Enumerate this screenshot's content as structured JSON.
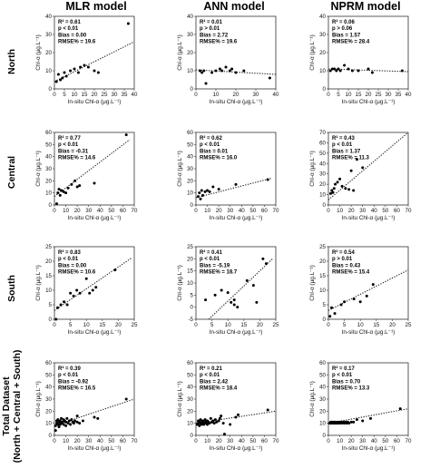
{
  "figure": {
    "columns": [
      "MLR model",
      "ANN model",
      "NPRM model"
    ],
    "rows": [
      {
        "label": "North"
      },
      {
        "label": "Central"
      },
      {
        "label": "South"
      },
      {
        "label": "Total Dataset",
        "sublabel": "(North + Central + South)"
      }
    ]
  },
  "chart_data": [
    {
      "type": "scatter",
      "row": "North",
      "model": "MLR model",
      "xlabel": "In-situ Chl-α  (μg.L⁻¹)",
      "ylabel": "Chl-α  (μg.L⁻¹)",
      "xlim": [
        0,
        40
      ],
      "ylim": [
        0,
        40
      ],
      "xticks": [
        0,
        5,
        10,
        15,
        20,
        25,
        30,
        35,
        40
      ],
      "yticks": [
        0,
        10,
        20,
        30,
        40
      ],
      "stats": [
        "R² = 0.61",
        "p < 0.01",
        "Bias = 0.00",
        "RMSE% = 19.6"
      ],
      "trend": [
        [
          0,
          4
        ],
        [
          40,
          26
        ]
      ],
      "points": [
        [
          1,
          4
        ],
        [
          2,
          8
        ],
        [
          3,
          5
        ],
        [
          4,
          6
        ],
        [
          5,
          9
        ],
        [
          6,
          7
        ],
        [
          8,
          10
        ],
        [
          10,
          11
        ],
        [
          12,
          9
        ],
        [
          13,
          12
        ],
        [
          15,
          13
        ],
        [
          17,
          12
        ],
        [
          20,
          10
        ],
        [
          22,
          9
        ],
        [
          37,
          36
        ]
      ]
    },
    {
      "type": "scatter",
      "row": "North",
      "model": "ANN model",
      "xlabel": "In-situ Chl-α  (μg.L⁻¹)",
      "ylabel": "Chl-α  (μg.L⁻¹)",
      "xlim": [
        0,
        40
      ],
      "ylim": [
        0,
        40
      ],
      "xticks": [
        0,
        10,
        20,
        30,
        40
      ],
      "yticks": [
        0,
        10,
        20,
        30,
        40
      ],
      "stats": [
        "R² = 0.01",
        "p > 0.01",
        "Bias = 2.72",
        "RMSE% = 19.6"
      ],
      "trend": [
        [
          0,
          10.5
        ],
        [
          40,
          8
        ]
      ],
      "points": [
        [
          2,
          10
        ],
        [
          3,
          9
        ],
        [
          4,
          10
        ],
        [
          5,
          3
        ],
        [
          8,
          9
        ],
        [
          10,
          10
        ],
        [
          12,
          11
        ],
        [
          13,
          10
        ],
        [
          15,
          12
        ],
        [
          17,
          10
        ],
        [
          18,
          11
        ],
        [
          20,
          9
        ],
        [
          24,
          10
        ],
        [
          37,
          6
        ]
      ]
    },
    {
      "type": "scatter",
      "row": "North",
      "model": "NPRM model",
      "xlabel": "In-situ Chl-α  (μg.L⁻¹)",
      "ylabel": "Chl-α  (μg.L⁻¹)",
      "xlim": [
        0,
        40
      ],
      "ylim": [
        0,
        40
      ],
      "xticks": [
        0,
        5,
        10,
        15,
        20,
        25,
        30,
        35,
        40
      ],
      "yticks": [
        0,
        10,
        20,
        30,
        40
      ],
      "stats": [
        "R² = 0.06",
        "p > 0.06",
        "Bias = 1.57",
        "RMSE% = 28.4"
      ],
      "trend": [
        [
          0,
          11
        ],
        [
          40,
          9.5
        ]
      ],
      "points": [
        [
          1,
          10
        ],
        [
          2,
          11
        ],
        [
          3,
          11
        ],
        [
          4,
          10
        ],
        [
          5,
          11
        ],
        [
          6,
          10
        ],
        [
          8,
          13
        ],
        [
          10,
          11
        ],
        [
          12,
          10
        ],
        [
          15,
          10
        ],
        [
          20,
          11
        ],
        [
          22,
          9
        ],
        [
          37,
          10
        ]
      ]
    },
    {
      "type": "scatter",
      "row": "Central",
      "model": "MLR model",
      "xlabel": "In-situ Chl-α  (μg.L⁻¹)",
      "ylabel": "Chl-α  (μg.L⁻¹)",
      "xlim": [
        0,
        70
      ],
      "ylim": [
        0,
        60
      ],
      "xticks": [
        0,
        10,
        20,
        30,
        40,
        50,
        60,
        70
      ],
      "yticks": [
        0,
        10,
        20,
        30,
        40,
        50,
        60
      ],
      "stats": [
        "R² = 0.77",
        "p < 0.01",
        "Bias = -0.31",
        "RMSE% = 14.6"
      ],
      "trend": [
        [
          0,
          7
        ],
        [
          66,
          54
        ]
      ],
      "points": [
        [
          2,
          1
        ],
        [
          3,
          10
        ],
        [
          4,
          13
        ],
        [
          5,
          8
        ],
        [
          6,
          12
        ],
        [
          8,
          11
        ],
        [
          10,
          10
        ],
        [
          12,
          14
        ],
        [
          15,
          17
        ],
        [
          18,
          20
        ],
        [
          20,
          15
        ],
        [
          22,
          16
        ],
        [
          35,
          18
        ],
        [
          63,
          58
        ]
      ]
    },
    {
      "type": "scatter",
      "row": "Central",
      "model": "ANN model",
      "xlabel": "In-situ Chl-α  (μg.L⁻¹)",
      "ylabel": "Chl-α  (μg.L⁻¹)",
      "xlim": [
        0,
        70
      ],
      "ylim": [
        0,
        60
      ],
      "xticks": [
        0,
        10,
        20,
        30,
        40,
        50,
        60,
        70
      ],
      "yticks": [
        0,
        10,
        20,
        30,
        40,
        50,
        60
      ],
      "stats": [
        "R² = 0.62",
        "p < 0.01",
        "Bias = 0.01",
        "RMSE% = 16.0"
      ],
      "trend": [
        [
          0,
          6
        ],
        [
          66,
          22
        ]
      ],
      "points": [
        [
          2,
          7
        ],
        [
          3,
          10
        ],
        [
          4,
          5
        ],
        [
          5,
          12
        ],
        [
          6,
          8
        ],
        [
          8,
          11
        ],
        [
          10,
          12
        ],
        [
          12,
          11
        ],
        [
          15,
          15
        ],
        [
          20,
          13
        ],
        [
          35,
          17
        ],
        [
          63,
          21
        ]
      ]
    },
    {
      "type": "scatter",
      "row": "Central",
      "model": "NPRM model",
      "xlabel": "In-situ Chl-α  (μg.L⁻¹)",
      "ylabel": "Chl-α  (μg.L⁻¹)",
      "xlim": [
        0,
        70
      ],
      "ylim": [
        0,
        70
      ],
      "xticks": [
        0,
        10,
        20,
        30,
        40,
        50,
        60,
        70
      ],
      "yticks": [
        0,
        10,
        20,
        30,
        40,
        50,
        60,
        70
      ],
      "stats": [
        "R² = 0.43",
        "p < 0.01",
        "Bias = 1.37",
        "RMSE% = 11.3"
      ],
      "trend": [
        [
          0,
          5
        ],
        [
          70,
          70
        ]
      ],
      "points": [
        [
          2,
          11
        ],
        [
          3,
          14
        ],
        [
          4,
          12
        ],
        [
          5,
          16
        ],
        [
          6,
          20
        ],
        [
          8,
          22
        ],
        [
          10,
          25
        ],
        [
          12,
          18
        ],
        [
          15,
          16
        ],
        [
          18,
          15
        ],
        [
          20,
          33
        ],
        [
          22,
          14
        ],
        [
          25,
          44
        ],
        [
          30,
          36
        ]
      ]
    },
    {
      "type": "scatter",
      "row": "South",
      "model": "MLR model",
      "xlabel": "In-situ Chl-α  (μg.L⁻¹)",
      "ylabel": "Chl-α  (μg.L⁻¹)",
      "xlim": [
        0,
        25
      ],
      "ylim": [
        0,
        25
      ],
      "xticks": [
        0,
        5,
        10,
        15,
        20,
        25
      ],
      "yticks": [
        0,
        5,
        10,
        15,
        20,
        25
      ],
      "stats": [
        "R² = 0.83",
        "p < 0.01",
        "Bias = 0.00",
        "RMSE% = 10.6"
      ],
      "trend": [
        [
          0,
          3
        ],
        [
          24,
          21
        ]
      ],
      "points": [
        [
          0.5,
          0
        ],
        [
          1,
          4
        ],
        [
          2,
          5
        ],
        [
          3,
          6
        ],
        [
          4,
          5
        ],
        [
          5,
          9
        ],
        [
          6,
          8
        ],
        [
          7,
          10
        ],
        [
          8,
          9
        ],
        [
          10,
          14
        ],
        [
          11,
          9
        ],
        [
          12,
          10
        ],
        [
          13,
          11
        ],
        [
          19,
          17
        ]
      ]
    },
    {
      "type": "scatter",
      "row": "South",
      "model": "ANN model",
      "xlabel": "In-situ Chl-α  (μg.L⁻¹)",
      "ylabel": "Chl-α  (μg.L⁻¹)",
      "xlim": [
        0,
        25
      ],
      "ylim": [
        -5,
        25
      ],
      "xticks": [
        0,
        5,
        10,
        15,
        20,
        25
      ],
      "yticks": [
        -5,
        0,
        5,
        10,
        15,
        20,
        25
      ],
      "stats": [
        "R² = 0.41",
        "p < 0.01",
        "Bias = -5.19",
        "RMSE% = 18.7"
      ],
      "trend": [
        [
          4,
          -5
        ],
        [
          24,
          20
        ]
      ],
      "points": [
        [
          3,
          3
        ],
        [
          6,
          5
        ],
        [
          8,
          7
        ],
        [
          10,
          6
        ],
        [
          11,
          2
        ],
        [
          12,
          1
        ],
        [
          12,
          3
        ],
        [
          13,
          0
        ],
        [
          16,
          11
        ],
        [
          18,
          9
        ],
        [
          19,
          2
        ],
        [
          21,
          20
        ],
        [
          22,
          18
        ]
      ]
    },
    {
      "type": "scatter",
      "row": "South",
      "model": "NPRM model",
      "xlabel": "In-situ Chl-α  (μg.L⁻¹)",
      "ylabel": "Chl-α  (μg.L⁻¹)",
      "xlim": [
        0,
        25
      ],
      "ylim": [
        0,
        25
      ],
      "xticks": [
        0,
        5,
        10,
        15,
        20,
        25
      ],
      "yticks": [
        0,
        5,
        10,
        15,
        20,
        25
      ],
      "stats": [
        "R² = 0.54",
        "p > 0.01",
        "Bias = 0.43",
        "RMSE% = 15.4"
      ],
      "trend": [
        [
          0,
          3
        ],
        [
          25,
          17
        ]
      ],
      "points": [
        [
          0.5,
          1
        ],
        [
          1,
          4
        ],
        [
          2,
          2
        ],
        [
          4,
          5
        ],
        [
          5,
          6
        ],
        [
          8,
          7
        ],
        [
          10,
          6
        ],
        [
          12,
          8
        ],
        [
          14,
          12
        ]
      ]
    },
    {
      "type": "scatter",
      "row": "Total Dataset",
      "model": "MLR model",
      "xlabel": "In-situ Chl-α  (μg.L⁻¹)",
      "ylabel": "Chl-α  (μg.L⁻¹)",
      "xlim": [
        0,
        70
      ],
      "ylim": [
        0,
        60
      ],
      "xticks": [
        0,
        10,
        20,
        30,
        40,
        50,
        60,
        70
      ],
      "yticks": [
        0,
        10,
        20,
        30,
        40,
        50,
        60
      ],
      "stats": [
        "R² = 0.39",
        "p < 0.01",
        "Bias = -0.92",
        "RMSE% = 16.5"
      ],
      "trend": [
        [
          0,
          8
        ],
        [
          70,
          30
        ]
      ],
      "points": [
        [
          1,
          4
        ],
        [
          1,
          8
        ],
        [
          2,
          10
        ],
        [
          2,
          12
        ],
        [
          3,
          9
        ],
        [
          3,
          13
        ],
        [
          4,
          11
        ],
        [
          4,
          7
        ],
        [
          5,
          12
        ],
        [
          5,
          9
        ],
        [
          6,
          10
        ],
        [
          6,
          14
        ],
        [
          7,
          11
        ],
        [
          8,
          9
        ],
        [
          8,
          13
        ],
        [
          9,
          12
        ],
        [
          10,
          8
        ],
        [
          10,
          11
        ],
        [
          11,
          14
        ],
        [
          12,
          10
        ],
        [
          13,
          12
        ],
        [
          14,
          9
        ],
        [
          15,
          13
        ],
        [
          16,
          11
        ],
        [
          17,
          10
        ],
        [
          18,
          12
        ],
        [
          20,
          11
        ],
        [
          20,
          16
        ],
        [
          22,
          10
        ],
        [
          25,
          12
        ],
        [
          35,
          15
        ],
        [
          38,
          14
        ],
        [
          63,
          30
        ]
      ]
    },
    {
      "type": "scatter",
      "row": "Total Dataset",
      "model": "ANN model",
      "xlabel": "In-situ Chl-α  (μg.L⁻¹)",
      "ylabel": "Chl-α  (μg.L⁻¹)",
      "xlim": [
        0,
        70
      ],
      "ylim": [
        0,
        60
      ],
      "xticks": [
        0,
        10,
        20,
        30,
        40,
        50,
        60,
        70
      ],
      "yticks": [
        0,
        10,
        20,
        30,
        40,
        50,
        60
      ],
      "stats": [
        "R² = 0.21",
        "p < 0.01",
        "Bias = 2.42",
        "RMSE% = 18.4"
      ],
      "trend": [
        [
          0,
          10
        ],
        [
          70,
          20
        ]
      ],
      "points": [
        [
          1,
          9
        ],
        [
          2,
          10
        ],
        [
          2,
          12
        ],
        [
          3,
          8
        ],
        [
          3,
          11
        ],
        [
          4,
          10
        ],
        [
          4,
          13
        ],
        [
          5,
          9
        ],
        [
          5,
          11
        ],
        [
          6,
          12
        ],
        [
          6,
          10
        ],
        [
          7,
          9
        ],
        [
          8,
          11
        ],
        [
          8,
          13
        ],
        [
          9,
          10
        ],
        [
          10,
          12
        ],
        [
          10,
          9
        ],
        [
          11,
          11
        ],
        [
          12,
          10
        ],
        [
          13,
          14
        ],
        [
          14,
          11
        ],
        [
          15,
          12
        ],
        [
          16,
          10
        ],
        [
          17,
          13
        ],
        [
          18,
          11
        ],
        [
          20,
          12
        ],
        [
          21,
          14
        ],
        [
          22,
          16
        ],
        [
          24,
          10
        ],
        [
          25,
          1
        ],
        [
          30,
          9
        ],
        [
          35,
          15
        ],
        [
          37,
          17
        ],
        [
          63,
          21
        ]
      ]
    },
    {
      "type": "scatter",
      "row": "Total Dataset",
      "model": "NPRM model",
      "xlabel": "In-situ Chl-α  (μg.L⁻¹)",
      "ylabel": "Chl-α  (μg.L⁻¹)",
      "xlim": [
        0,
        70
      ],
      "ylim": [
        0,
        60
      ],
      "xticks": [
        0,
        10,
        20,
        30,
        40,
        50,
        60,
        70
      ],
      "yticks": [
        0,
        10,
        20,
        30,
        40,
        50,
        60
      ],
      "stats": [
        "R² = 0.17",
        "p < 0.01",
        "Bias = 0.70",
        "RMSE% = 13.3"
      ],
      "trend": [
        [
          0,
          10
        ],
        [
          70,
          22
        ]
      ],
      "points": [
        [
          1,
          10
        ],
        [
          2,
          10
        ],
        [
          2,
          11
        ],
        [
          3,
          10
        ],
        [
          3,
          11
        ],
        [
          4,
          10
        ],
        [
          4,
          11
        ],
        [
          5,
          10
        ],
        [
          5,
          11
        ],
        [
          6,
          10
        ],
        [
          6,
          11
        ],
        [
          7,
          10
        ],
        [
          8,
          10
        ],
        [
          8,
          11
        ],
        [
          9,
          10
        ],
        [
          10,
          11
        ],
        [
          10,
          10
        ],
        [
          11,
          11
        ],
        [
          12,
          10
        ],
        [
          13,
          11
        ],
        [
          14,
          10
        ],
        [
          15,
          11
        ],
        [
          16,
          10
        ],
        [
          17,
          11
        ],
        [
          18,
          10
        ],
        [
          20,
          11
        ],
        [
          22,
          11
        ],
        [
          25,
          13
        ],
        [
          30,
          12
        ],
        [
          37,
          14
        ],
        [
          63,
          22
        ]
      ]
    }
  ]
}
